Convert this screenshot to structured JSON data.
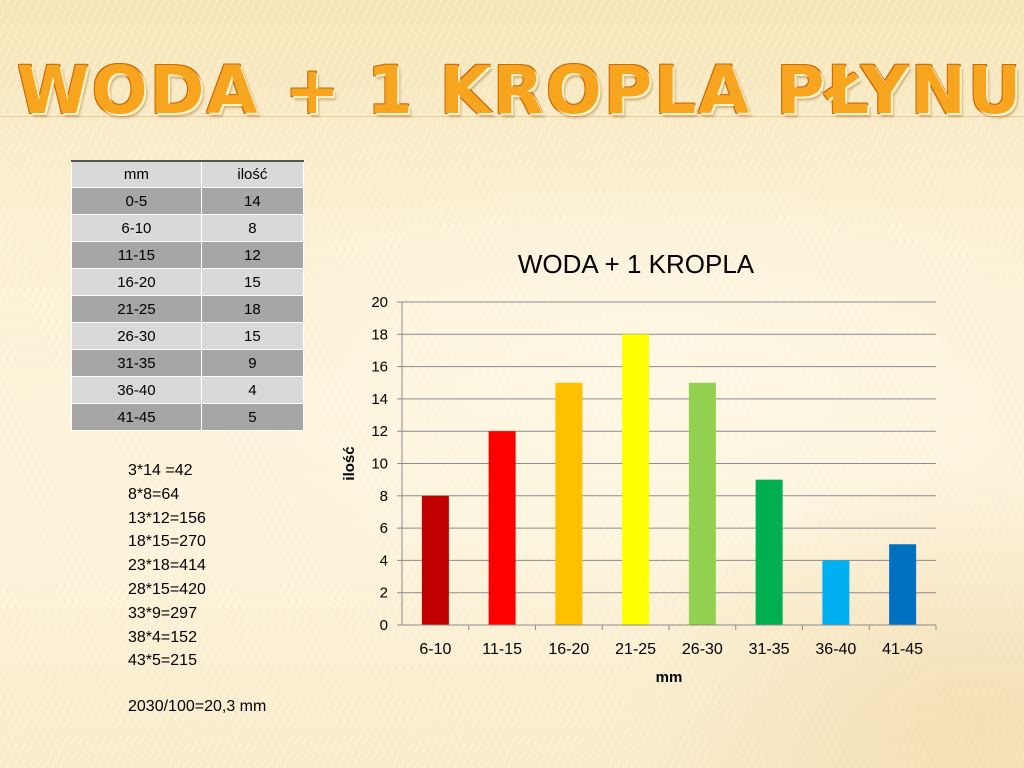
{
  "slide": {
    "title": "WODA + 1 KROPLA PŁYNU"
  },
  "table": {
    "headers": [
      "mm",
      "ilość"
    ],
    "rows": [
      [
        "0-5",
        "14"
      ],
      [
        "6-10",
        "8"
      ],
      [
        "11-15",
        "12"
      ],
      [
        "16-20",
        "15"
      ],
      [
        "21-25",
        "18"
      ],
      [
        "26-30",
        "15"
      ],
      [
        "31-35",
        "9"
      ],
      [
        "36-40",
        "4"
      ],
      [
        "41-45",
        "5"
      ]
    ]
  },
  "calculations": [
    "3*14 =42",
    "8*8=64",
    "13*12=156",
    "18*15=270",
    "23*18=414",
    "28*15=420",
    "33*9=297",
    "38*4=152",
    "43*5=215"
  ],
  "total": "2030/100=20,3 mm",
  "chart_data": {
    "type": "bar",
    "title": "WODA + 1 KROPLA",
    "xlabel": "mm",
    "ylabel": "ilość",
    "categories": [
      "6-10",
      "11-15",
      "16-20",
      "21-25",
      "26-30",
      "31-35",
      "36-40",
      "41-45"
    ],
    "values": [
      8,
      12,
      15,
      18,
      15,
      9,
      4,
      5
    ],
    "bar_colors": [
      "#c00000",
      "#ff0000",
      "#ffc000",
      "#ffff00",
      "#92d050",
      "#00b050",
      "#00b0f0",
      "#0070c0"
    ],
    "ylim": [
      0,
      20
    ],
    "yticks": [
      0,
      2,
      4,
      6,
      8,
      10,
      12,
      14,
      16,
      18,
      20
    ],
    "grid": true,
    "legend": "none"
  }
}
